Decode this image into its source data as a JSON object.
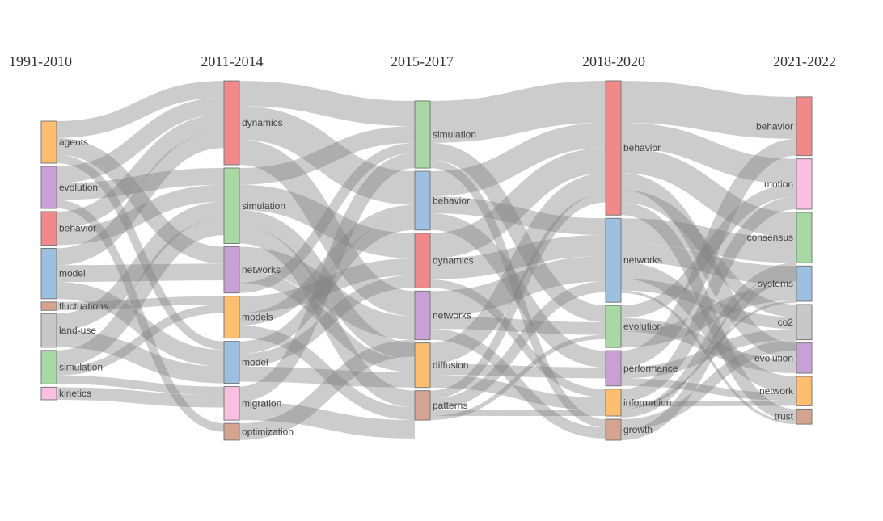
{
  "chart_data": {
    "type": "sankey",
    "title": "",
    "link_color": "#808080",
    "periods": [
      {
        "label": "1991-2010",
        "nodes": [
          {
            "name": "agents",
            "value": 5,
            "color": "#fdbf6f"
          },
          {
            "name": "evolution",
            "value": 5,
            "color": "#c9a0d6"
          },
          {
            "name": "behavior",
            "value": 4,
            "color": "#f08a8a"
          },
          {
            "name": "model",
            "value": 6,
            "color": "#9dbfe0"
          },
          {
            "name": "fluctuations",
            "value": 1,
            "color": "#d4a491"
          },
          {
            "name": "land-use",
            "value": 4,
            "color": "#c8c8c8"
          },
          {
            "name": "simulation",
            "value": 4,
            "color": "#a8d8a4"
          },
          {
            "name": "kinetics",
            "value": 1.5,
            "color": "#f9bfe0"
          }
        ]
      },
      {
        "label": "2011-2014",
        "nodes": [
          {
            "name": "dynamics",
            "value": 10,
            "color": "#f08a8a"
          },
          {
            "name": "simulation",
            "value": 9,
            "color": "#a8d8a4"
          },
          {
            "name": "networks",
            "value": 5.5,
            "color": "#c9a0d6"
          },
          {
            "name": "models",
            "value": 5,
            "color": "#fdbf6f"
          },
          {
            "name": "model",
            "value": 5,
            "color": "#9dbfe0"
          },
          {
            "name": "migration",
            "value": 4,
            "color": "#f9bfe0"
          },
          {
            "name": "optimization",
            "value": 2,
            "color": "#d4a491"
          }
        ]
      },
      {
        "label": "2015-2017",
        "nodes": [
          {
            "name": "simulation",
            "value": 8,
            "color": "#a8d8a4"
          },
          {
            "name": "behavior",
            "value": 7,
            "color": "#9dbfe0"
          },
          {
            "name": "dynamics",
            "value": 6.5,
            "color": "#f08a8a"
          },
          {
            "name": "networks",
            "value": 5.8,
            "color": "#c9a0d6"
          },
          {
            "name": "diffusion",
            "value": 5.3,
            "color": "#fdbf6f"
          },
          {
            "name": "patterns",
            "value": 3.5,
            "color": "#d4a491"
          }
        ]
      },
      {
        "label": "2018-2020",
        "nodes": [
          {
            "name": "behavior",
            "value": 16,
            "color": "#f08a8a"
          },
          {
            "name": "networks",
            "value": 10,
            "color": "#9dbfe0"
          },
          {
            "name": "evolution",
            "value": 5,
            "color": "#a8d8a4"
          },
          {
            "name": "performance",
            "value": 4.2,
            "color": "#c9a0d6"
          },
          {
            "name": "information",
            "value": 3.2,
            "color": "#fdbf6f"
          },
          {
            "name": "growth",
            "value": 2.5,
            "color": "#d4a491"
          }
        ]
      },
      {
        "label": "2021-2022",
        "nodes": [
          {
            "name": "behavior",
            "value": 7,
            "color": "#f08a8a"
          },
          {
            "name": "motion",
            "value": 6,
            "color": "#f9bfe0"
          },
          {
            "name": "consensus",
            "value": 6,
            "color": "#a8d8a4"
          },
          {
            "name": "systems",
            "value": 4.2,
            "color": "#9dbfe0"
          },
          {
            "name": "co2",
            "value": 4.2,
            "color": "#c8c8c8"
          },
          {
            "name": "evolution",
            "value": 3.6,
            "color": "#c9a0d6"
          },
          {
            "name": "network",
            "value": 3.5,
            "color": "#fdbf6f"
          },
          {
            "name": "trust",
            "value": 1.8,
            "color": "#d4a491"
          }
        ]
      }
    ],
    "links": [
      {
        "from": [
          0,
          0
        ],
        "to": [
          1,
          0
        ],
        "value": 2
      },
      {
        "from": [
          0,
          0
        ],
        "to": [
          1,
          2
        ],
        "value": 2
      },
      {
        "from": [
          0,
          0
        ],
        "to": [
          1,
          4
        ],
        "value": 1
      },
      {
        "from": [
          0,
          1
        ],
        "to": [
          1,
          0
        ],
        "value": 2
      },
      {
        "from": [
          0,
          1
        ],
        "to": [
          1,
          1
        ],
        "value": 2
      },
      {
        "from": [
          0,
          1
        ],
        "to": [
          1,
          6
        ],
        "value": 1
      },
      {
        "from": [
          0,
          2
        ],
        "to": [
          1,
          0
        ],
        "value": 2
      },
      {
        "from": [
          0,
          2
        ],
        "to": [
          1,
          1
        ],
        "value": 2
      },
      {
        "from": [
          0,
          3
        ],
        "to": [
          1,
          0
        ],
        "value": 2
      },
      {
        "from": [
          0,
          3
        ],
        "to": [
          1,
          2
        ],
        "value": 2
      },
      {
        "from": [
          0,
          3
        ],
        "to": [
          1,
          4
        ],
        "value": 2
      },
      {
        "from": [
          0,
          4
        ],
        "to": [
          1,
          3
        ],
        "value": 1
      },
      {
        "from": [
          0,
          5
        ],
        "to": [
          1,
          1
        ],
        "value": 2
      },
      {
        "from": [
          0,
          5
        ],
        "to": [
          1,
          4
        ],
        "value": 2
      },
      {
        "from": [
          0,
          6
        ],
        "to": [
          1,
          1
        ],
        "value": 2
      },
      {
        "from": [
          0,
          6
        ],
        "to": [
          1,
          3
        ],
        "value": 1
      },
      {
        "from": [
          0,
          6
        ],
        "to": [
          1,
          5
        ],
        "value": 1
      },
      {
        "from": [
          0,
          7
        ],
        "to": [
          1,
          5
        ],
        "value": 1.5
      },
      {
        "from": [
          1,
          0
        ],
        "to": [
          2,
          0
        ],
        "value": 3
      },
      {
        "from": [
          1,
          0
        ],
        "to": [
          2,
          1
        ],
        "value": 4
      },
      {
        "from": [
          1,
          0
        ],
        "to": [
          2,
          3
        ],
        "value": 3
      },
      {
        "from": [
          1,
          1
        ],
        "to": [
          2,
          0
        ],
        "value": 2
      },
      {
        "from": [
          1,
          1
        ],
        "to": [
          2,
          2
        ],
        "value": 3
      },
      {
        "from": [
          1,
          1
        ],
        "to": [
          2,
          4
        ],
        "value": 2
      },
      {
        "from": [
          1,
          1
        ],
        "to": [
          2,
          5
        ],
        "value": 2
      },
      {
        "from": [
          1,
          2
        ],
        "to": [
          2,
          3
        ],
        "value": 2.8
      },
      {
        "from": [
          1,
          2
        ],
        "to": [
          2,
          4
        ],
        "value": 1.5
      },
      {
        "from": [
          1,
          2
        ],
        "to": [
          2,
          0
        ],
        "value": 1.2
      },
      {
        "from": [
          1,
          3
        ],
        "to": [
          2,
          2
        ],
        "value": 2
      },
      {
        "from": [
          1,
          3
        ],
        "to": [
          2,
          1
        ],
        "value": 1.5
      },
      {
        "from": [
          1,
          3
        ],
        "to": [
          2,
          5
        ],
        "value": 1.5
      },
      {
        "from": [
          1,
          4
        ],
        "to": [
          2,
          1
        ],
        "value": 1.5
      },
      {
        "from": [
          1,
          4
        ],
        "to": [
          2,
          2
        ],
        "value": 1.5
      },
      {
        "from": [
          1,
          4
        ],
        "to": [
          2,
          4
        ],
        "value": 1.8
      },
      {
        "from": [
          1,
          5
        ],
        "to": [
          2,
          0
        ],
        "value": 1.8
      },
      {
        "from": [
          1,
          5
        ],
        "to": [
          2,
          5
        ],
        "value": 2.2
      },
      {
        "from": [
          1,
          6
        ],
        "to": [
          2,
          3
        ],
        "value": 2
      },
      {
        "from": [
          2,
          0
        ],
        "to": [
          3,
          0
        ],
        "value": 5
      },
      {
        "from": [
          2,
          0
        ],
        "to": [
          3,
          2
        ],
        "value": 2
      },
      {
        "from": [
          2,
          0
        ],
        "to": [
          3,
          5
        ],
        "value": 1
      },
      {
        "from": [
          2,
          1
        ],
        "to": [
          3,
          0
        ],
        "value": 3
      },
      {
        "from": [
          2,
          1
        ],
        "to": [
          3,
          1
        ],
        "value": 2
      },
      {
        "from": [
          2,
          1
        ],
        "to": [
          3,
          3
        ],
        "value": 2
      },
      {
        "from": [
          2,
          2
        ],
        "to": [
          3,
          0
        ],
        "value": 3
      },
      {
        "from": [
          2,
          2
        ],
        "to": [
          3,
          1
        ],
        "value": 2.5
      },
      {
        "from": [
          2,
          2
        ],
        "to": [
          3,
          4
        ],
        "value": 1
      },
      {
        "from": [
          2,
          3
        ],
        "to": [
          3,
          1
        ],
        "value": 3
      },
      {
        "from": [
          2,
          3
        ],
        "to": [
          3,
          2
        ],
        "value": 1.5
      },
      {
        "from": [
          2,
          3
        ],
        "to": [
          3,
          5
        ],
        "value": 1.3
      },
      {
        "from": [
          2,
          4
        ],
        "to": [
          3,
          0
        ],
        "value": 2.5
      },
      {
        "from": [
          2,
          4
        ],
        "to": [
          3,
          3
        ],
        "value": 1.3
      },
      {
        "from": [
          2,
          4
        ],
        "to": [
          3,
          4
        ],
        "value": 1.5
      },
      {
        "from": [
          2,
          5
        ],
        "to": [
          3,
          0
        ],
        "value": 1
      },
      {
        "from": [
          2,
          5
        ],
        "to": [
          3,
          1
        ],
        "value": 1.3
      },
      {
        "from": [
          2,
          5
        ],
        "to": [
          3,
          4
        ],
        "value": 0.7
      },
      {
        "from": [
          2,
          5
        ],
        "to": [
          3,
          2
        ],
        "value": 0.5
      },
      {
        "from": [
          3,
          0
        ],
        "to": [
          4,
          0
        ],
        "value": 5
      },
      {
        "from": [
          3,
          0
        ],
        "to": [
          4,
          1
        ],
        "value": 3
      },
      {
        "from": [
          3,
          0
        ],
        "to": [
          4,
          2
        ],
        "value": 3
      },
      {
        "from": [
          3,
          0
        ],
        "to": [
          4,
          5
        ],
        "value": 2
      },
      {
        "from": [
          3,
          0
        ],
        "to": [
          4,
          4
        ],
        "value": 1.5
      },
      {
        "from": [
          3,
          0
        ],
        "to": [
          4,
          7
        ],
        "value": 1.5
      },
      {
        "from": [
          3,
          1
        ],
        "to": [
          4,
          2
        ],
        "value": 3
      },
      {
        "from": [
          3,
          1
        ],
        "to": [
          4,
          3
        ],
        "value": 2.2
      },
      {
        "from": [
          3,
          1
        ],
        "to": [
          4,
          6
        ],
        "value": 2
      },
      {
        "from": [
          3,
          1
        ],
        "to": [
          4,
          4
        ],
        "value": 1.4
      },
      {
        "from": [
          3,
          1
        ],
        "to": [
          4,
          7
        ],
        "value": 0.3
      },
      {
        "from": [
          3,
          2
        ],
        "to": [
          4,
          1
        ],
        "value": 1.5
      },
      {
        "from": [
          3,
          2
        ],
        "to": [
          4,
          5
        ],
        "value": 1.6
      },
      {
        "from": [
          3,
          2
        ],
        "to": [
          4,
          3
        ],
        "value": 1.9
      },
      {
        "from": [
          3,
          3
        ],
        "to": [
          4,
          0
        ],
        "value": 2
      },
      {
        "from": [
          3,
          3
        ],
        "to": [
          4,
          4
        ],
        "value": 1.3
      },
      {
        "from": [
          3,
          3
        ],
        "to": [
          4,
          6
        ],
        "value": 0.9
      },
      {
        "from": [
          3,
          4
        ],
        "to": [
          4,
          1
        ],
        "value": 1.5
      },
      {
        "from": [
          3,
          4
        ],
        "to": [
          4,
          6
        ],
        "value": 0.6
      },
      {
        "from": [
          3,
          4
        ],
        "to": [
          4,
          3
        ],
        "value": 0.1
      },
      {
        "from": [
          3,
          4
        ],
        "to": [
          4,
          2
        ],
        "value": 1
      },
      {
        "from": [
          3,
          5
        ],
        "to": [
          4,
          4
        ],
        "value": 1.3
      },
      {
        "from": [
          3,
          5
        ],
        "to": [
          4,
          7
        ],
        "value": 0
      },
      {
        "from": [
          3,
          5
        ],
        "to": [
          4,
          3
        ],
        "value": 0
      },
      {
        "from": [
          3,
          5
        ],
        "to": [
          4,
          2
        ],
        "value": 1.2
      }
    ]
  }
}
